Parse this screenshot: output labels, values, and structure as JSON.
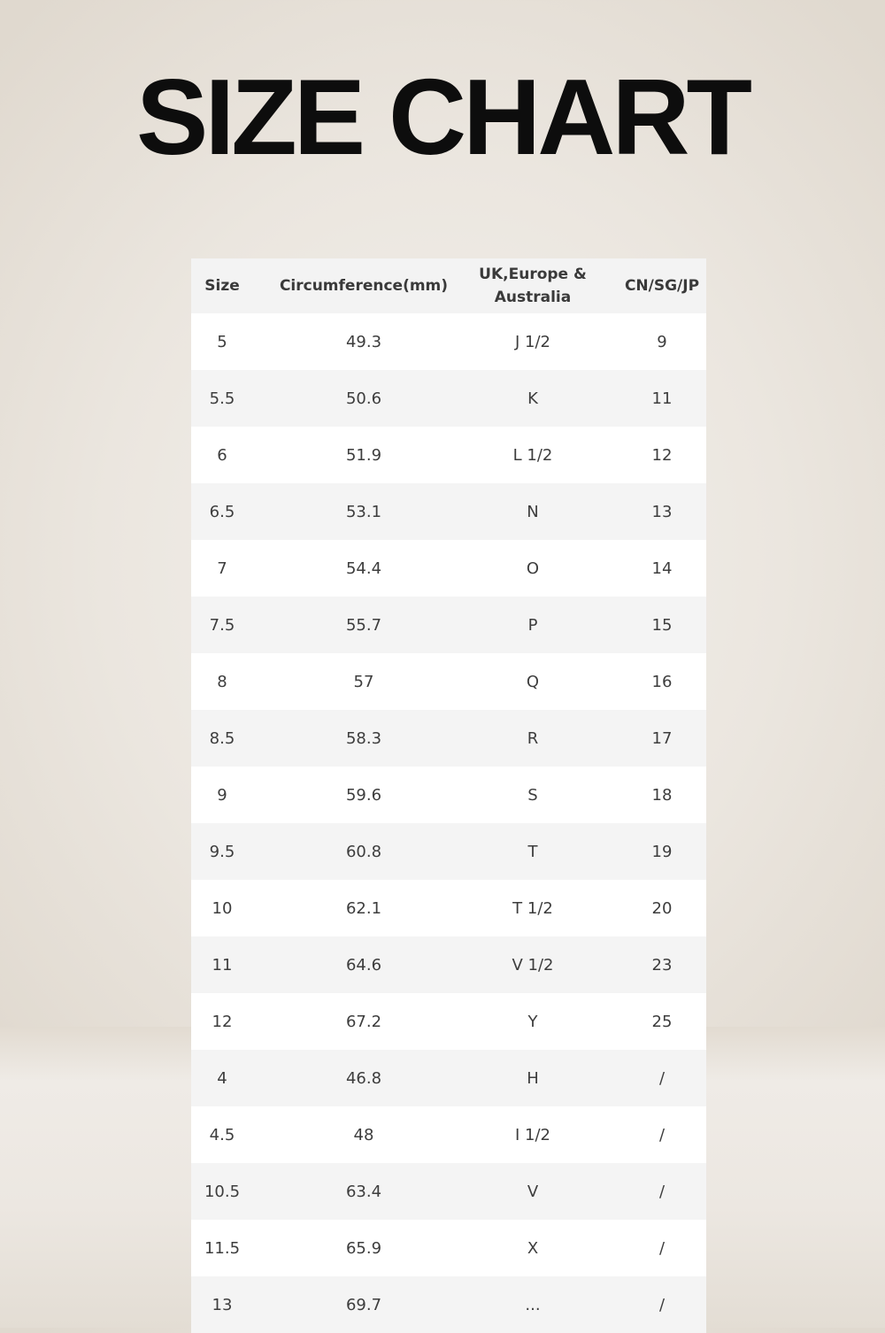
{
  "title": "SIZE CHART",
  "table": {
    "headers": [
      "Size",
      "Circumference(mm)",
      "UK,Europe & Australia",
      "CN/SG/JP"
    ],
    "rows": [
      [
        "5",
        "49.3",
        "J 1/2",
        "9"
      ],
      [
        "5.5",
        "50.6",
        "K",
        "11"
      ],
      [
        "6",
        "51.9",
        "L 1/2",
        "12"
      ],
      [
        "6.5",
        "53.1",
        "N",
        "13"
      ],
      [
        "7",
        "54.4",
        "O",
        "14"
      ],
      [
        "7.5",
        "55.7",
        "P",
        "15"
      ],
      [
        "8",
        "57",
        "Q",
        "16"
      ],
      [
        "8.5",
        "58.3",
        "R",
        "17"
      ],
      [
        "9",
        "59.6",
        "S",
        "18"
      ],
      [
        "9.5",
        "60.8",
        "T",
        "19"
      ],
      [
        "10",
        "62.1",
        "T 1/2",
        "20"
      ],
      [
        "11",
        "64.6",
        "V 1/2",
        "23"
      ],
      [
        "12",
        "67.2",
        "Y",
        "25"
      ],
      [
        "4",
        "46.8",
        "H",
        "/"
      ],
      [
        "4.5",
        "48",
        "I 1/2",
        "/"
      ],
      [
        "10.5",
        "63.4",
        "V",
        "/"
      ],
      [
        "11.5",
        "65.9",
        "X",
        "/"
      ],
      [
        "13",
        "69.7",
        "...",
        "/"
      ]
    ]
  }
}
